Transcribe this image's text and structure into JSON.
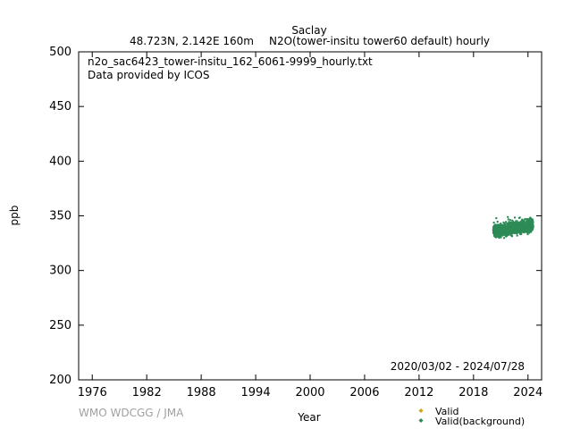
{
  "chart_data": {
    "type": "scatter",
    "title": "Saclay",
    "subtitle_left": "48.723N, 2.142E 160m",
    "subtitle_right": "N2O(tower-insitu tower60 default) hourly",
    "filename": "n2o_sac6423_tower-insitu_162_6061-9999_hourly.txt",
    "provider": "Data provided by ICOS",
    "date_range": "2020/03/02 - 2024/07/28",
    "xlabel": "Year",
    "ylabel": "ppb",
    "xlim": [
      1974.5,
      2025.5
    ],
    "ylim": [
      200,
      500
    ],
    "xticks": [
      1976,
      1982,
      1988,
      1994,
      2000,
      2006,
      2012,
      2018,
      2024
    ],
    "yticks": [
      200,
      250,
      300,
      350,
      400,
      450,
      500
    ],
    "credit": "WMO WDCGG / JMA",
    "legend": [
      {
        "label": "Valid",
        "color": "#d4a017"
      },
      {
        "label": "Valid(background)",
        "color": "#2e8b57"
      }
    ],
    "series": [
      {
        "name": "Valid(background)",
        "color": "#2e8b57",
        "x_start": 2020.17,
        "x_end": 2024.57,
        "baseline_start": 336,
        "baseline_end": 341,
        "spread": 4,
        "max": 350,
        "min": 331
      }
    ]
  }
}
